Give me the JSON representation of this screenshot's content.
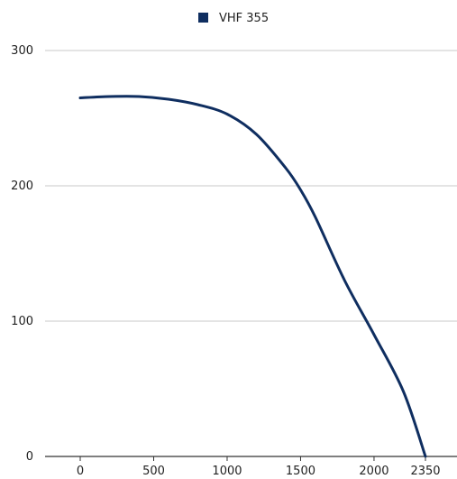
{
  "chart_data": {
    "type": "line",
    "title": "",
    "xlabel": "",
    "ylabel": "",
    "x_ticks": [
      0,
      500,
      1000,
      1500,
      2000,
      2350
    ],
    "y_ticks": [
      0,
      100,
      200,
      300
    ],
    "xlim": [
      0,
      2350
    ],
    "ylim": [
      0,
      300
    ],
    "grid": "horizontal",
    "legend_position": "top-center",
    "series": [
      {
        "name": "VHF 355",
        "color": "#0f2e60",
        "x": [
          0,
          200,
          400,
          600,
          800,
          1000,
          1200,
          1400,
          1500,
          1600,
          1800,
          2000,
          2200,
          2350
        ],
        "y": [
          265,
          266,
          266,
          264,
          260,
          253,
          238,
          213,
          197,
          177,
          130,
          90,
          48,
          0
        ]
      }
    ]
  }
}
